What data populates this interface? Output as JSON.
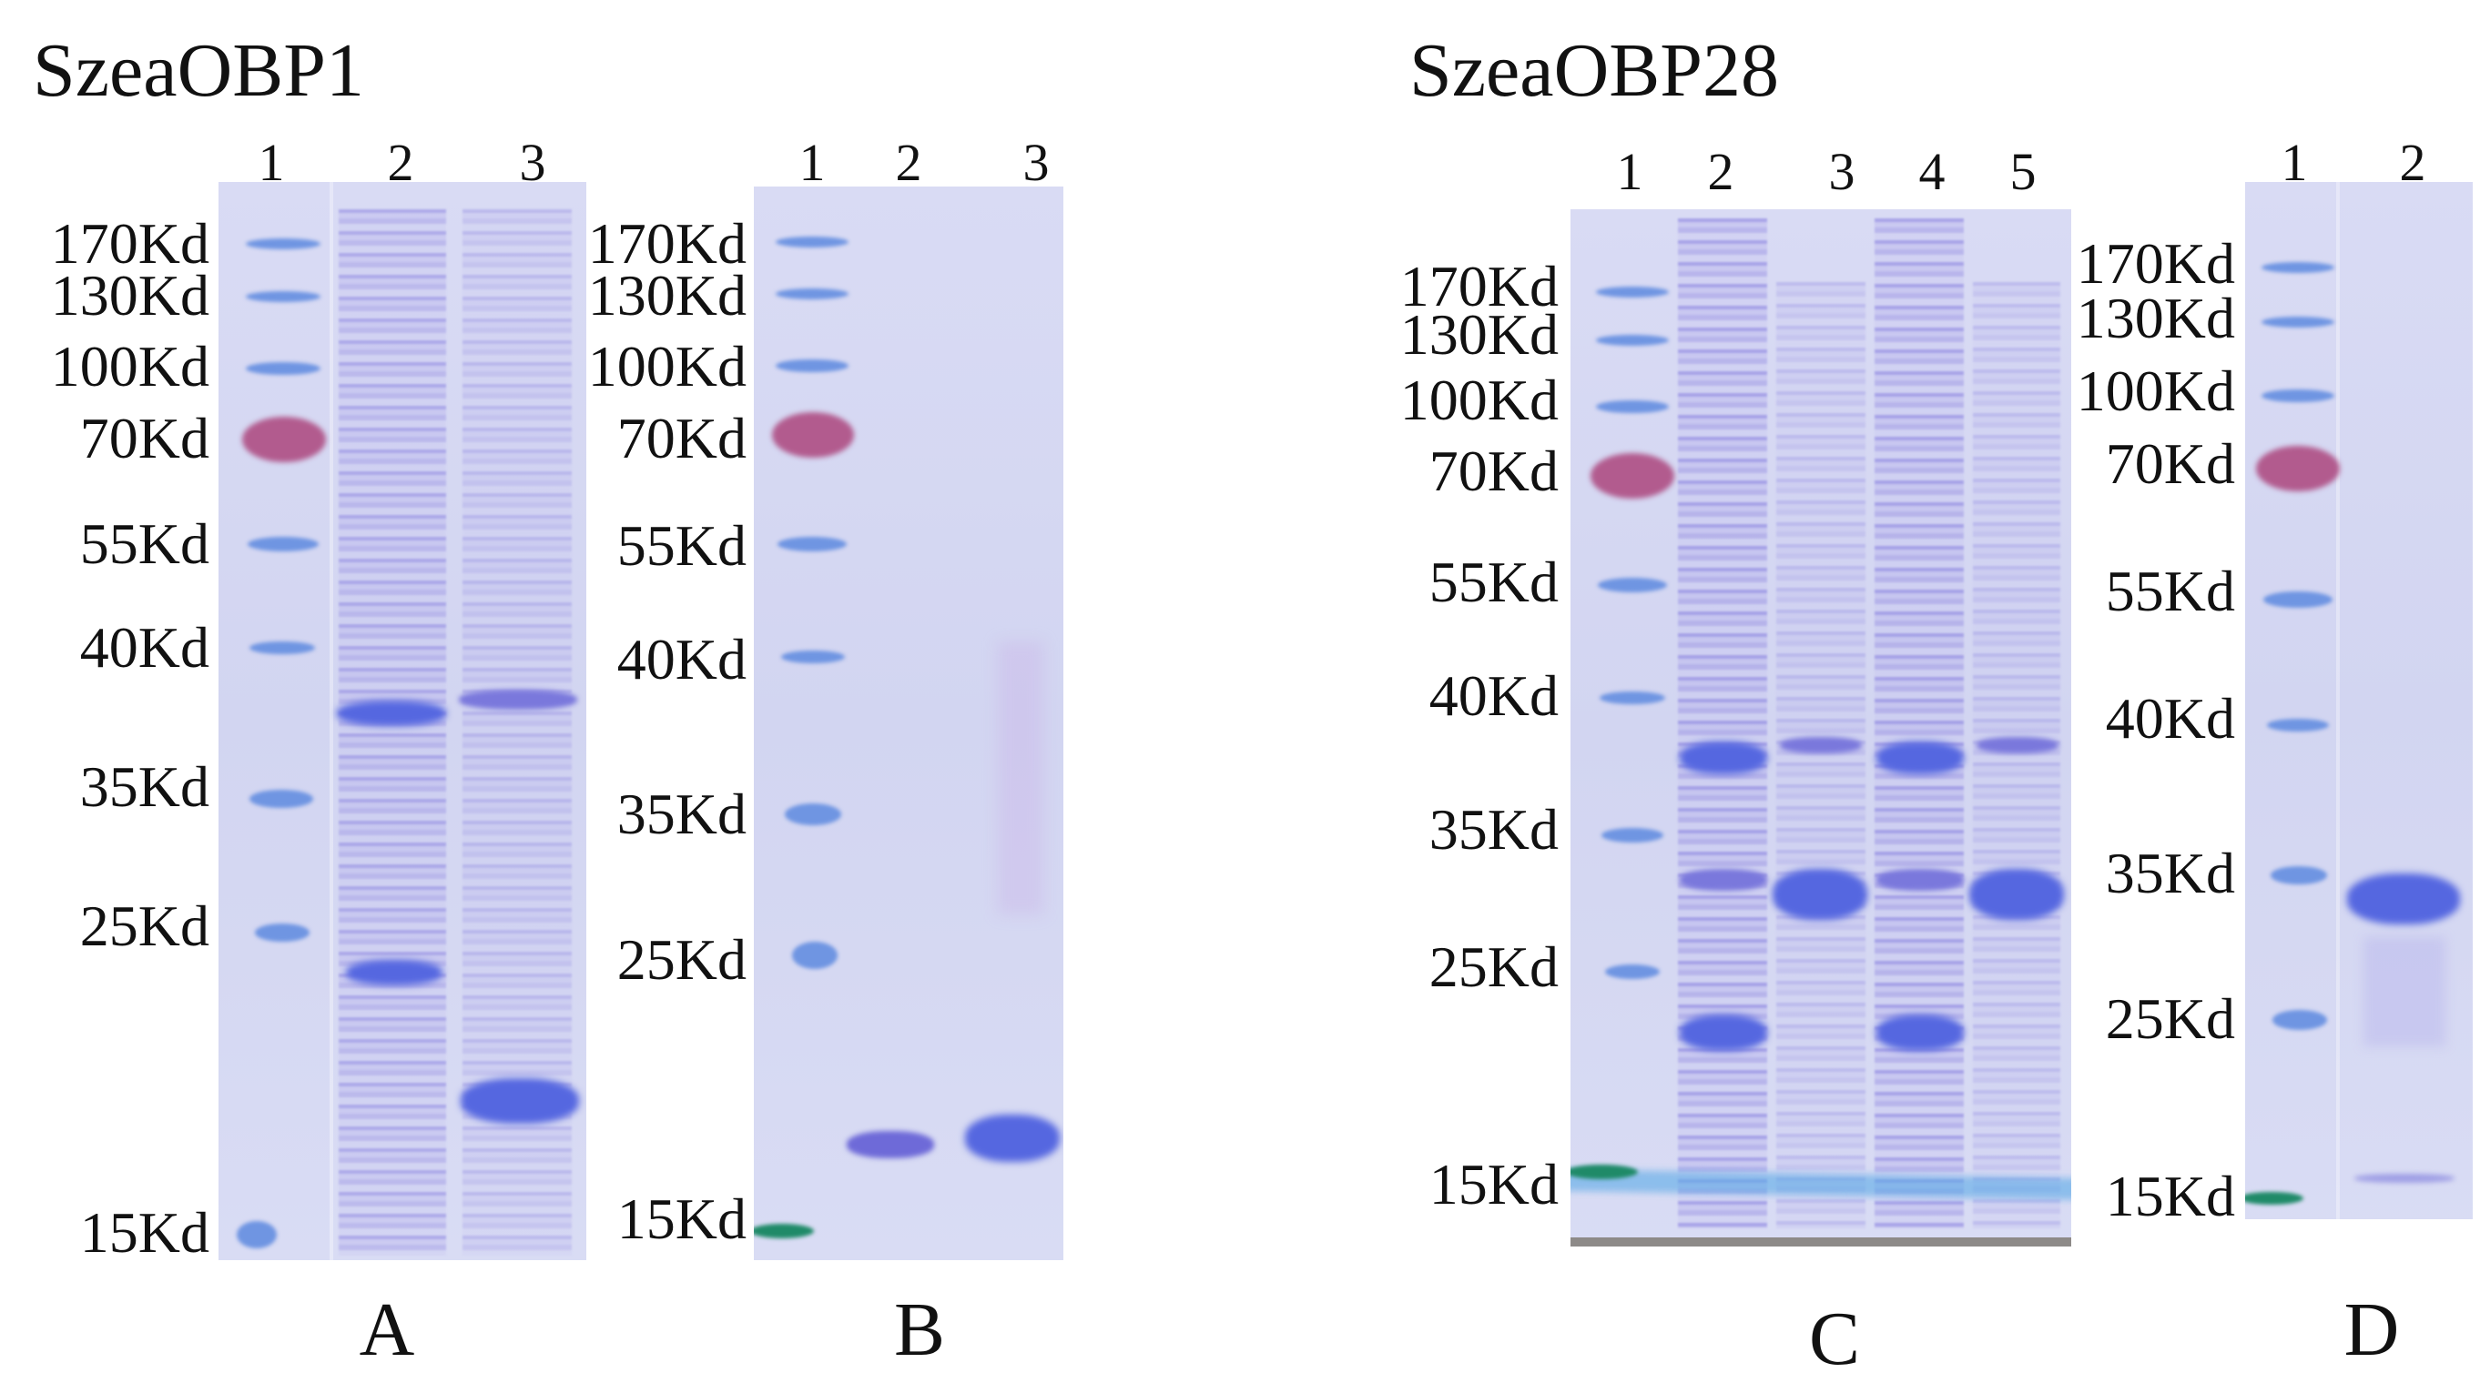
{
  "figure": {
    "titles": [
      "SzeaOBP1",
      "SzeaOBP28"
    ],
    "panels": [
      {
        "letter": "A",
        "lanes": [
          "1",
          "2",
          "3"
        ],
        "markers": [
          "170Kd",
          "130Kd",
          "100Kd",
          "70Kd",
          "55Kd",
          "40Kd",
          "35Kd",
          "25Kd",
          "15Kd"
        ]
      },
      {
        "letter": "B",
        "lanes": [
          "1",
          "2",
          "3"
        ],
        "markers": [
          "170Kd",
          "130Kd",
          "100Kd",
          "70Kd",
          "55Kd",
          "40Kd",
          "35Kd",
          "25Kd",
          "15Kd"
        ]
      },
      {
        "letter": "C",
        "lanes": [
          "1",
          "2",
          "3",
          "4",
          "5"
        ],
        "markers": [
          "170Kd",
          "130Kd",
          "100Kd",
          "70Kd",
          "55Kd",
          "40Kd",
          "35Kd",
          "25Kd",
          "15Kd"
        ]
      },
      {
        "letter": "D",
        "lanes": [
          "1",
          "2"
        ],
        "markers": [
          "170Kd",
          "130Kd",
          "100Kd",
          "70Kd",
          "55Kd",
          "40Kd",
          "35Kd",
          "25Kd",
          "15Kd"
        ]
      }
    ]
  },
  "colors": {
    "gel_background": "#d4d7f2",
    "ladder_blue": "#6f95e2",
    "ladder_red": "#b25b8e",
    "ladder_green": "#1f8a68",
    "protein_band": "#5567e0"
  }
}
